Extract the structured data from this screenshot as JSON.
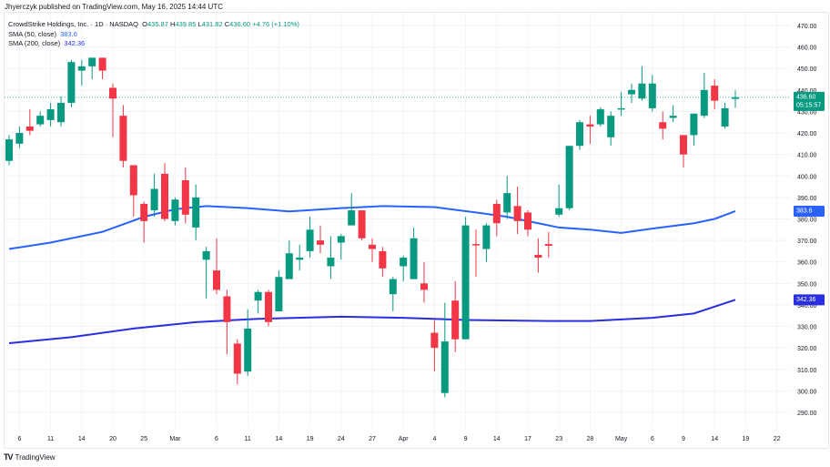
{
  "published": "Jhyerczyk published on TradingView.com, May 16, 2025 14:44 UTC",
  "logo_text": "TradingView",
  "legend": {
    "symbol": "CrowdStrike Holdings, Inc. · 1D · NASDAQ",
    "o_label": "O",
    "o": "435.87",
    "h_label": "H",
    "h": "439.85",
    "l_label": "L",
    "l": "431.82",
    "c_label": "C",
    "c": "436.60",
    "change": "+4.76 (+1.10%)",
    "sma50_label": "SMA (50, close)",
    "sma50": "383.6",
    "sma200_label": "SMA (200, close)",
    "sma200": "342.36"
  },
  "price_badge": {
    "price": "436.60",
    "countdown": "05:15:57"
  },
  "colors": {
    "up": "#089981",
    "down": "#f23645",
    "sma50": "#2962ff",
    "sma200": "#2a2ee0",
    "grid": "#f0f3fa"
  },
  "chart_data": {
    "type": "candlestick",
    "title": "CrowdStrike Holdings, Inc. · 1D · NASDAQ",
    "ylim": [
      285,
      475
    ],
    "y_ticks": [
      "470.00",
      "460.00",
      "450.00",
      "440.00",
      "430.00",
      "420.00",
      "410.00",
      "400.00",
      "390.00",
      "380.00",
      "370.00",
      "360.00",
      "350.00",
      "340.00",
      "330.00",
      "320.00",
      "310.00",
      "300.00",
      "290.00"
    ],
    "y_tick_values": [
      470,
      460,
      450,
      440,
      430,
      420,
      410,
      400,
      390,
      380,
      370,
      360,
      350,
      340,
      330,
      320,
      310,
      300,
      290
    ],
    "x_ticks": [
      {
        "label": "6",
        "i": 1
      },
      {
        "label": "11",
        "i": 4
      },
      {
        "label": "14",
        "i": 7
      },
      {
        "label": "20",
        "i": 10
      },
      {
        "label": "25",
        "i": 13
      },
      {
        "label": "Mar",
        "i": 16
      },
      {
        "label": "6",
        "i": 20
      },
      {
        "label": "11",
        "i": 23
      },
      {
        "label": "14",
        "i": 26
      },
      {
        "label": "19",
        "i": 29
      },
      {
        "label": "24",
        "i": 32
      },
      {
        "label": "27",
        "i": 35
      },
      {
        "label": "Apr",
        "i": 38
      },
      {
        "label": "4",
        "i": 41
      },
      {
        "label": "9",
        "i": 44
      },
      {
        "label": "14",
        "i": 47
      },
      {
        "label": "17",
        "i": 50
      },
      {
        "label": "23",
        "i": 53
      },
      {
        "label": "28",
        "i": 56
      },
      {
        "label": "May",
        "i": 59
      },
      {
        "label": "6",
        "i": 62
      },
      {
        "label": "9",
        "i": 65
      },
      {
        "label": "14",
        "i": 68
      },
      {
        "label": "19",
        "i": 71
      },
      {
        "label": "22",
        "i": 74
      }
    ],
    "ohlc": [
      [
        407,
        419,
        405,
        417
      ],
      [
        415,
        423,
        413,
        420
      ],
      [
        423,
        431,
        419,
        421
      ],
      [
        424,
        430,
        423,
        428
      ],
      [
        426,
        434,
        423,
        431
      ],
      [
        425,
        437,
        423,
        434
      ],
      [
        434,
        454,
        432,
        453
      ],
      [
        449,
        454,
        442,
        451
      ],
      [
        451,
        455,
        445,
        455
      ],
      [
        455,
        455,
        445,
        449
      ],
      [
        441,
        443,
        418,
        436
      ],
      [
        428,
        433,
        404,
        407
      ],
      [
        405,
        405,
        381,
        391
      ],
      [
        387,
        388,
        369,
        379
      ],
      [
        384,
        401,
        381,
        394
      ],
      [
        401,
        406,
        379,
        380
      ],
      [
        379,
        390,
        377,
        389
      ],
      [
        398,
        404,
        378,
        382
      ],
      [
        376,
        396,
        370,
        390
      ],
      [
        361,
        367,
        343,
        365
      ],
      [
        356,
        371,
        345,
        347
      ],
      [
        344,
        347,
        317,
        332
      ],
      [
        322,
        324,
        303,
        308
      ],
      [
        309,
        338,
        307,
        329
      ],
      [
        342,
        347,
        336,
        346
      ],
      [
        346,
        347,
        330,
        332
      ],
      [
        337,
        356,
        337,
        353
      ],
      [
        352,
        370,
        352,
        364
      ],
      [
        361,
        368,
        356,
        362
      ],
      [
        365,
        381,
        362,
        375
      ],
      [
        370,
        377,
        364,
        368
      ],
      [
        358,
        372,
        352,
        362
      ],
      [
        369,
        373,
        361,
        372
      ],
      [
        377,
        392,
        377,
        384
      ],
      [
        384,
        384,
        370,
        371
      ],
      [
        368,
        371,
        360,
        366
      ],
      [
        365,
        367,
        353,
        357
      ],
      [
        345,
        353,
        337,
        352
      ],
      [
        358,
        363,
        351,
        362
      ],
      [
        352,
        376,
        352,
        371
      ],
      [
        350,
        360,
        341,
        347
      ],
      [
        327,
        333,
        309,
        320
      ],
      [
        299,
        341,
        297,
        323
      ],
      [
        342,
        351,
        318,
        324
      ],
      [
        324,
        381,
        324,
        377
      ],
      [
        368.3,
        375,
        353,
        368
      ],
      [
        366,
        378,
        360,
        377
      ],
      [
        387,
        389,
        372,
        378
      ],
      [
        383,
        400,
        380,
        392
      ],
      [
        386,
        395,
        373,
        379
      ],
      [
        383,
        384,
        372,
        375
      ],
      [
        363.3,
        371,
        355,
        362
      ],
      [
        368.3,
        374,
        362,
        367.5
      ],
      [
        382,
        396,
        381,
        385
      ],
      [
        385,
        414,
        384,
        414
      ],
      [
        414,
        426,
        412,
        425
      ],
      [
        424,
        428,
        415,
        423
      ],
      [
        424,
        432,
        423,
        431
      ],
      [
        418,
        430,
        414,
        428
      ],
      [
        431,
        439,
        428,
        431.5
      ],
      [
        438,
        443,
        434,
        440
      ],
      [
        436,
        451,
        435,
        443
      ],
      [
        431.5,
        447,
        430,
        443
      ],
      [
        425,
        430,
        417,
        422
      ],
      [
        427,
        433,
        425,
        428
      ],
      [
        419,
        419,
        404,
        410
      ],
      [
        419,
        429,
        414,
        429
      ],
      [
        428,
        448,
        427,
        440
      ],
      [
        442,
        445,
        431,
        435
      ],
      [
        423,
        434,
        422,
        431.5
      ],
      [
        435.87,
        439.85,
        431.82,
        436.6
      ]
    ],
    "series": [
      {
        "name": "SMA (50, close)",
        "points": [
          [
            0,
            366
          ],
          [
            4,
            369
          ],
          [
            9,
            374
          ],
          [
            13,
            381
          ],
          [
            16,
            384.5
          ],
          [
            19,
            386
          ],
          [
            23,
            385
          ],
          [
            27,
            383.5
          ],
          [
            32,
            385
          ],
          [
            36,
            386
          ],
          [
            41,
            385.5
          ],
          [
            45,
            383
          ],
          [
            48,
            381
          ],
          [
            51,
            378
          ],
          [
            53,
            376
          ],
          [
            56,
            375
          ],
          [
            59,
            373.5
          ],
          [
            62,
            375.5
          ],
          [
            66,
            378
          ],
          [
            68,
            380
          ],
          [
            70,
            383.6
          ]
        ]
      },
      {
        "name": "SMA (200, close)",
        "points": [
          [
            0,
            322.2
          ],
          [
            6,
            325
          ],
          [
            12,
            329
          ],
          [
            18,
            332
          ],
          [
            24,
            333.5
          ],
          [
            32,
            334.5
          ],
          [
            38,
            334
          ],
          [
            44,
            333
          ],
          [
            52,
            332.5
          ],
          [
            56,
            332.5
          ],
          [
            62,
            334
          ],
          [
            66,
            336
          ],
          [
            70,
            342.36
          ]
        ]
      }
    ]
  }
}
